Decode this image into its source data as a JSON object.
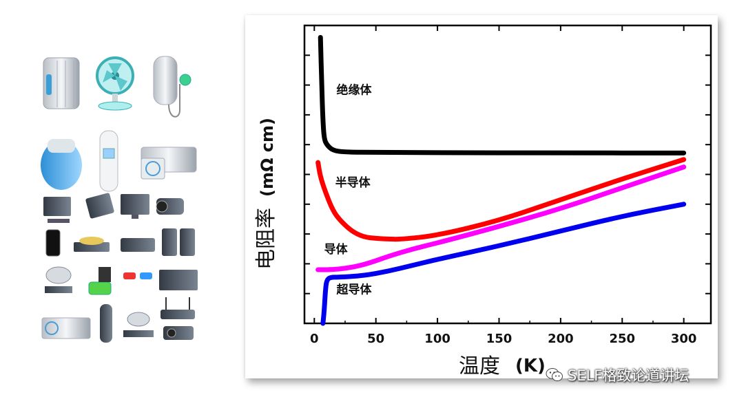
{
  "chart_data": {
    "type": "line",
    "xlabel": "温度",
    "xlabel_unit": "(K)",
    "ylabel": "电阻率",
    "ylabel_unit": "(mΩ cm)",
    "xlim": [
      -8,
      322
    ],
    "ylim": [
      0,
      10
    ],
    "x_ticks": [
      0,
      50,
      100,
      150,
      200,
      250,
      300
    ],
    "x_tick_labels": [
      "0",
      "50",
      "100",
      "150",
      "200",
      "250",
      "300"
    ],
    "y_tick_count": 9,
    "grid": false,
    "series": [
      {
        "name": "绝缘体",
        "color": "#000000",
        "points": [
          [
            5,
            9.6
          ],
          [
            6,
            8.0
          ],
          [
            7,
            6.8
          ],
          [
            8,
            6.2
          ],
          [
            10,
            6.0
          ],
          [
            15,
            5.8
          ],
          [
            25,
            5.75
          ],
          [
            50,
            5.74
          ],
          [
            100,
            5.73
          ],
          [
            200,
            5.72
          ],
          [
            300,
            5.72
          ]
        ]
      },
      {
        "name": "半导体",
        "color": "#ff0000",
        "points": [
          [
            3,
            5.4
          ],
          [
            5,
            4.9
          ],
          [
            10,
            4.3
          ],
          [
            15,
            3.8
          ],
          [
            20,
            3.5
          ],
          [
            30,
            3.1
          ],
          [
            40,
            2.9
          ],
          [
            50,
            2.85
          ],
          [
            60,
            2.83
          ],
          [
            70,
            2.82
          ],
          [
            100,
            2.95
          ],
          [
            150,
            3.45
          ],
          [
            200,
            4.15
          ],
          [
            250,
            4.85
          ],
          [
            300,
            5.5
          ]
        ]
      },
      {
        "name": "导体",
        "color": "#ff00ff",
        "points": [
          [
            3,
            1.8
          ],
          [
            10,
            1.8
          ],
          [
            20,
            1.82
          ],
          [
            30,
            1.88
          ],
          [
            40,
            1.97
          ],
          [
            50,
            2.1
          ],
          [
            60,
            2.25
          ],
          [
            80,
            2.5
          ],
          [
            100,
            2.7
          ],
          [
            150,
            3.25
          ],
          [
            200,
            3.85
          ],
          [
            250,
            4.55
          ],
          [
            300,
            5.25
          ]
        ]
      },
      {
        "name": "超导体",
        "color": "#0000ee",
        "points": [
          [
            7,
            0
          ],
          [
            8,
            0.4
          ],
          [
            9,
            1.1
          ],
          [
            10,
            1.45
          ],
          [
            13,
            1.55
          ],
          [
            20,
            1.55
          ],
          [
            40,
            1.6
          ],
          [
            60,
            1.75
          ],
          [
            80,
            1.95
          ],
          [
            100,
            2.15
          ],
          [
            150,
            2.6
          ],
          [
            200,
            3.1
          ],
          [
            250,
            3.6
          ],
          [
            300,
            4.0
          ]
        ]
      }
    ],
    "annotations": [
      {
        "text": "绝缘体",
        "x": 18,
        "y": 7.7
      },
      {
        "text": "半导体",
        "x": 17,
        "y": 4.6
      },
      {
        "text": "导体",
        "x": 8,
        "y": 2.35
      },
      {
        "text": "超导体",
        "x": 18,
        "y": 1.0
      }
    ]
  },
  "watermark": {
    "text": "SELF格致论道讲坛",
    "icon": "wechat-icon"
  },
  "illustration": {
    "icon": "household-appliances-icon"
  }
}
